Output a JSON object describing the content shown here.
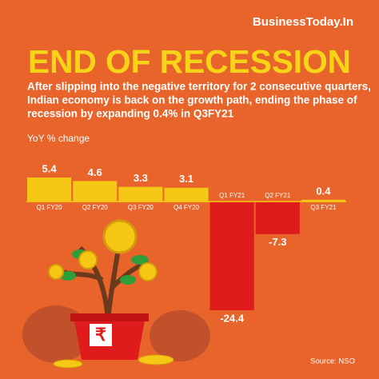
{
  "brand": "BusinessToday.In",
  "source": "Source: NSO",
  "chart_data": {
    "type": "bar",
    "title": "END OF RECESSION",
    "subtitle": [
      "After slipping into the negative territory for 2 consecutive quarters,",
      "Indian economy is back on the growth path, ending the phase of",
      "recession by expanding 0.4% in Q3FY21"
    ],
    "y_label": "YoY % change",
    "categories": [
      "Q1 FY20",
      "Q2 FY20",
      "Q3 FY20",
      "Q4 FY20",
      "Q1 FY21",
      "Q2 FY21",
      "Q3 FY21"
    ],
    "values": [
      5.4,
      4.6,
      3.3,
      3.1,
      -24.4,
      -7.3,
      0.4
    ],
    "color": "#f5c816",
    "negative_color": "#e01b1c"
  }
}
